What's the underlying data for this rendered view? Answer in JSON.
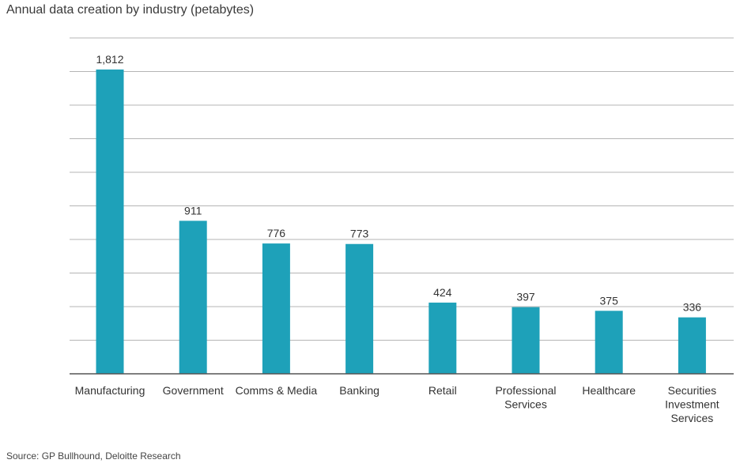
{
  "chart_data": {
    "type": "bar",
    "title": "Annual data creation by industry (petabytes)",
    "source": "Source: GP Bullhound, Deloitte Research",
    "categories": [
      [
        "Manufacturing"
      ],
      [
        "Government"
      ],
      [
        "Comms & Media"
      ],
      [
        "Banking"
      ],
      [
        "Retail"
      ],
      [
        "Professional",
        "Services"
      ],
      [
        "Healthcare"
      ],
      [
        "Securities",
        "Investment",
        "Services"
      ]
    ],
    "values": [
      1812,
      911,
      776,
      773,
      424,
      397,
      375,
      336
    ],
    "value_labels": [
      "1,812",
      "911",
      "776",
      "773",
      "424",
      "397",
      "375",
      "336"
    ],
    "xlabel": "",
    "ylabel": "",
    "ylim": [
      0,
      2000
    ],
    "grid": true,
    "bar_color": "#1ea1b9",
    "grid_color": "#b5b5b5",
    "axis_color": "#555555"
  }
}
